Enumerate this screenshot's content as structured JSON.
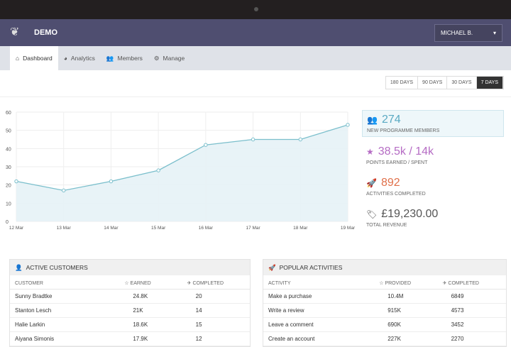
{
  "app": {
    "brand": "DEMO",
    "user": "MICHAEL B.",
    "user_caret": "▾",
    "logo_icon": "bird-logo"
  },
  "nav": [
    {
      "label": "Dashboard",
      "icon": "⌂"
    },
    {
      "label": "Analytics",
      "icon": "◕"
    },
    {
      "label": "Members",
      "icon": "👥"
    },
    {
      "label": "Manage",
      "icon": "⚙"
    }
  ],
  "ranges": [
    "180 DAYS",
    "90 DAYS",
    "30 DAYS",
    "7 DAYS"
  ],
  "active_range": "7 DAYS",
  "chart_data": {
    "type": "area",
    "categories": [
      "12 Mar",
      "13 Mar",
      "14 Mar",
      "15 Mar",
      "16 Mar",
      "17 Mar",
      "18 Mar",
      "19 Mar"
    ],
    "values": [
      22,
      17,
      22,
      28,
      42,
      45,
      45,
      53
    ],
    "ylim": [
      0,
      60
    ],
    "yticks": [
      0,
      10,
      20,
      30,
      40,
      50,
      60
    ],
    "grid": true,
    "color": "#7bbfcc",
    "fill": "#e6f2f6"
  },
  "stats": [
    {
      "value": "274",
      "label": "NEW PROGRAMME MEMBERS",
      "icon": "👥",
      "color": "#5aaac3"
    },
    {
      "value": "38.5k / 14k",
      "label": "POINTS EARNED / SPENT",
      "icon": "★",
      "color": "#b56cc4"
    },
    {
      "value": "892",
      "label": "ACTIVITIES COMPLETED",
      "icon": "🚀",
      "color": "#e0704a"
    },
    {
      "value": "£19,230.00",
      "label": "TOTAL REVENUE",
      "icon": "🏷",
      "color": "#555555"
    }
  ],
  "customers": {
    "title": "ACTIVE CUSTOMERS",
    "columns": [
      "CUSTOMER",
      "☆ EARNED",
      "✈ COMPLETED"
    ],
    "rows": [
      [
        "Sunny Bradtke",
        "24.8K",
        "20"
      ],
      [
        "Stanton Lesch",
        "21K",
        "14"
      ],
      [
        "Halie Larkin",
        "18.6K",
        "15"
      ],
      [
        "Aiyana Simonis",
        "17.9K",
        "12"
      ]
    ]
  },
  "activities": {
    "title": "POPULAR ACTIVITIES",
    "columns": [
      "ACTIVITY",
      "☆ PROVIDED",
      "✈ COMPLETED"
    ],
    "rows": [
      [
        "Make a purchase",
        "10.4M",
        "6849"
      ],
      [
        "Write a review",
        "915K",
        "4573"
      ],
      [
        "Leave a comment",
        "690K",
        "3452"
      ],
      [
        "Create an account",
        "227K",
        "2270"
      ]
    ]
  }
}
